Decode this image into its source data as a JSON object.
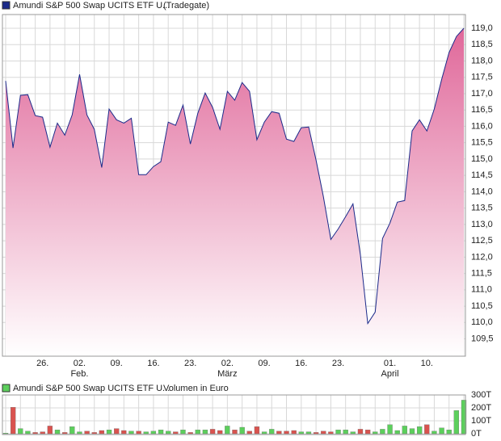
{
  "chart_data": [
    {
      "type": "area",
      "source": "(Tradegate)",
      "series": [
        {
          "name": "Amundi S&P 500 Swap UCITS ETF U...",
          "color": "#1b2a8a",
          "values": [
            117.39,
            115.34,
            116.95,
            116.97,
            116.33,
            116.28,
            115.36,
            116.1,
            115.73,
            116.35,
            117.59,
            116.35,
            115.91,
            114.74,
            116.53,
            116.2,
            116.1,
            116.25,
            114.52,
            114.52,
            114.77,
            114.92,
            116.13,
            116.03,
            116.65,
            115.46,
            116.4,
            117.02,
            116.58,
            115.91,
            117.07,
            116.8,
            117.34,
            117.07,
            115.59,
            116.13,
            116.45,
            116.4,
            115.61,
            115.54,
            115.96,
            115.98,
            114.97,
            113.85,
            112.54,
            112.86,
            113.24,
            113.63,
            112.07,
            109.97,
            110.32,
            112.57,
            113.04,
            113.68,
            113.73,
            115.86,
            116.2,
            115.86,
            116.53,
            117.44,
            118.26,
            118.75,
            119.0
          ]
        }
      ],
      "fill_color": "#e0689a",
      "categories": [
        null,
        null,
        null,
        null,
        null,
        "26.",
        null,
        null,
        null,
        null,
        "02.",
        null,
        null,
        null,
        null,
        "09.",
        null,
        null,
        null,
        null,
        "16.",
        null,
        null,
        null,
        null,
        "23.",
        null,
        null,
        null,
        null,
        "02.",
        null,
        null,
        null,
        null,
        "09.",
        null,
        null,
        null,
        null,
        "16.",
        null,
        null,
        null,
        null,
        "23.",
        null,
        null,
        null,
        null,
        null,
        null,
        "01.",
        null,
        null,
        null,
        null,
        "10.",
        null,
        null,
        null,
        null,
        null
      ],
      "month_labels": [
        null,
        null,
        null,
        null,
        null,
        null,
        null,
        null,
        null,
        null,
        "Feb.",
        null,
        null,
        null,
        null,
        null,
        null,
        null,
        null,
        null,
        null,
        null,
        null,
        null,
        null,
        null,
        null,
        null,
        null,
        null,
        "März",
        null,
        null,
        null,
        null,
        null,
        null,
        null,
        null,
        null,
        null,
        null,
        null,
        null,
        null,
        null,
        null,
        null,
        null,
        null,
        null,
        null,
        "April",
        null,
        null,
        null,
        null,
        null,
        null,
        null,
        null,
        null,
        null
      ],
      "ylim": [
        108.97,
        119.42
      ],
      "yticks": [
        {
          "value": 109.5,
          "label": "109,5"
        },
        {
          "value": 110,
          "label": "110,0"
        },
        {
          "value": 110.5,
          "label": "110,5"
        },
        {
          "value": 111,
          "label": "111,0"
        },
        {
          "value": 111.5,
          "label": "111,5"
        },
        {
          "value": 112,
          "label": "112,0"
        },
        {
          "value": 112.5,
          "label": "112,5"
        },
        {
          "value": 113,
          "label": "113,0"
        },
        {
          "value": 113.5,
          "label": "113,5"
        },
        {
          "value": 114,
          "label": "114,0"
        },
        {
          "value": 114.5,
          "label": "114,5"
        },
        {
          "value": 115,
          "label": "115,0"
        },
        {
          "value": 115.5,
          "label": "115,5"
        },
        {
          "value": 116,
          "label": "116,0"
        },
        {
          "value": 116.5,
          "label": "116,5"
        },
        {
          "value": 117,
          "label": "117,0"
        },
        {
          "value": 117.5,
          "label": "117,5"
        },
        {
          "value": 118,
          "label": "118,0"
        },
        {
          "value": 118.5,
          "label": "118,5"
        },
        {
          "value": 119,
          "label": "119,0"
        }
      ],
      "grid": true
    },
    {
      "type": "bar",
      "unit_label": "Volumen in Euro",
      "series": [
        {
          "name": "Amundi S&P 500 Swap UCITS ETF U...",
          "color": "#5ccf5c",
          "values": [
            5,
            205,
            40,
            20,
            10,
            15,
            60,
            30,
            10,
            55,
            15,
            20,
            10,
            25,
            30,
            40,
            25,
            20,
            20,
            15,
            20,
            30,
            20,
            15,
            30,
            10,
            30,
            30,
            35,
            25,
            60,
            30,
            50,
            20,
            55,
            15,
            35,
            20,
            20,
            25,
            15,
            15,
            10,
            20,
            15,
            30,
            30,
            15,
            35,
            30,
            15,
            35,
            70,
            25,
            60,
            40,
            55,
            70,
            20,
            45,
            30,
            180,
            260
          ]
        }
      ],
      "up_color": "#5ccf5c",
      "down_color": "#d9534f",
      "ylim": [
        0,
        300
      ],
      "yticks": [
        {
          "value": 0,
          "label": "0T"
        },
        {
          "value": 100,
          "label": "100T"
        },
        {
          "value": 200,
          "label": "200T"
        },
        {
          "value": 300,
          "label": "300T"
        }
      ],
      "grid": true
    }
  ]
}
